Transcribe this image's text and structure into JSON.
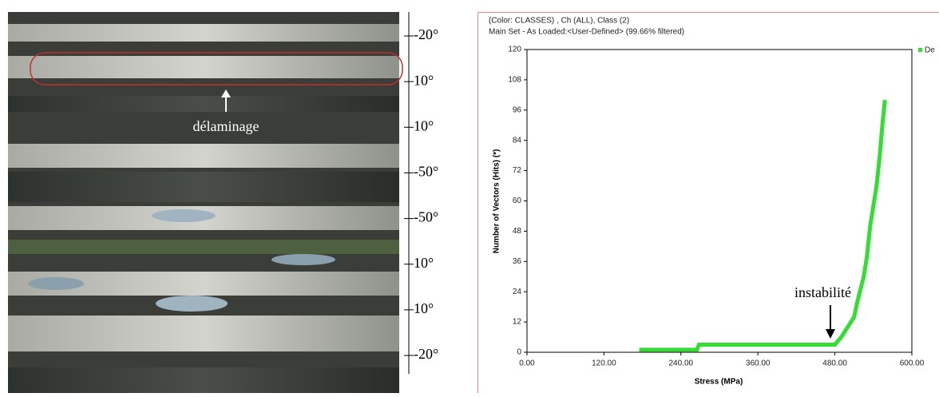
{
  "micrograph": {
    "annotation": "délaminage",
    "ply_labels": [
      "-20°",
      "10°",
      "10°",
      "-50°",
      "-50°",
      "10°",
      "10°",
      "-20°"
    ]
  },
  "chart_data": {
    "type": "line",
    "header": [
      "(Color: CLASSES) , Ch (ALL), Class (2)",
      "Main Set - As Loaded:<User-Defined> (99.66% filtered)"
    ],
    "x_label": "Stress (MPa)",
    "y_label": "Number of Vectors (Hits) (*)",
    "annotation": "instabilité",
    "x": [
      175,
      265,
      268,
      480,
      490,
      500,
      510,
      515,
      520,
      525,
      530,
      535,
      540,
      545,
      550,
      554,
      558
    ],
    "series": [
      {
        "name": "De",
        "color": "#33dd33",
        "values": [
          1,
          1,
          3,
          3,
          6,
          10,
          14,
          20,
          25,
          30,
          38,
          50,
          58,
          66,
          78,
          90,
          100
        ]
      }
    ],
    "xlim": [
      0,
      600
    ],
    "ylim": [
      0,
      120
    ],
    "xticks": [
      {
        "value": 0,
        "label": "0.00"
      },
      {
        "value": 120,
        "label": "120.00"
      },
      {
        "value": 240,
        "label": "240.00"
      },
      {
        "value": 360,
        "label": "360.00"
      },
      {
        "value": 480,
        "label": "480.00"
      },
      {
        "value": 600,
        "label": "600.00"
      }
    ],
    "yticks": [
      0,
      12,
      24,
      36,
      48,
      60,
      72,
      84,
      96,
      108,
      120
    ]
  }
}
